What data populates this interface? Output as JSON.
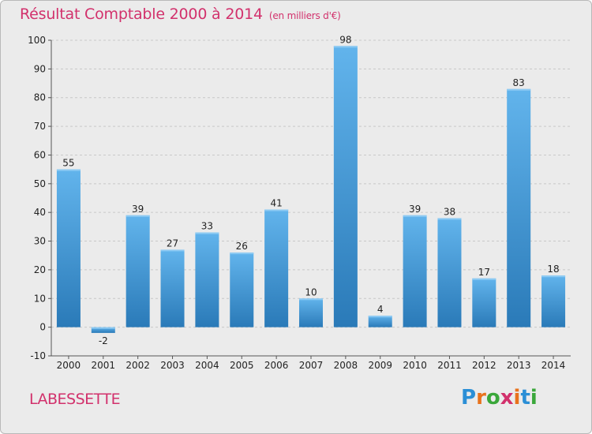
{
  "header": {
    "title": "Résultat Comptable 2000 à 2014",
    "subtitle": "(en milliers d'€)"
  },
  "commune": "LABESSETTE",
  "logo": {
    "text": "Proxiti",
    "letter_colors": [
      "#2b8fd6",
      "#e8721c",
      "#3aa73a",
      "#d2316c",
      "#e8721c",
      "#2b8fd6",
      "#3aa73a"
    ]
  },
  "colors": {
    "title": "#d2316c",
    "bar_top": "#62b4ec",
    "bar_bottom": "#2a7ab8",
    "background": "#ebebeb",
    "gridline": "#c8c8c8"
  },
  "chart_data": {
    "type": "bar",
    "title": "Résultat Comptable 2000 à 2014",
    "subtitle": "(en milliers d'€)",
    "xlabel": "",
    "ylabel": "",
    "categories": [
      "2000",
      "2001",
      "2002",
      "2003",
      "2004",
      "2005",
      "2006",
      "2007",
      "2008",
      "2009",
      "2010",
      "2011",
      "2012",
      "2013",
      "2014"
    ],
    "values": [
      55,
      -2,
      39,
      27,
      33,
      26,
      41,
      10,
      98,
      4,
      39,
      38,
      17,
      83,
      18
    ],
    "data_labels": [
      "55",
      "-2",
      "39",
      "27",
      "33",
      "26",
      "41",
      "10",
      "98",
      "4",
      "39",
      "38",
      "17",
      "83",
      "18"
    ],
    "ylim": [
      -10,
      100
    ],
    "yticks": [
      -10,
      0,
      10,
      20,
      30,
      40,
      50,
      60,
      70,
      80,
      90,
      100
    ],
    "ytick_labels": [
      "-10",
      "0",
      "10",
      "20",
      "30",
      "40",
      "50",
      "60",
      "70",
      "80",
      "90",
      "100"
    ],
    "grid": "horizontal dashed",
    "legend": "none"
  }
}
